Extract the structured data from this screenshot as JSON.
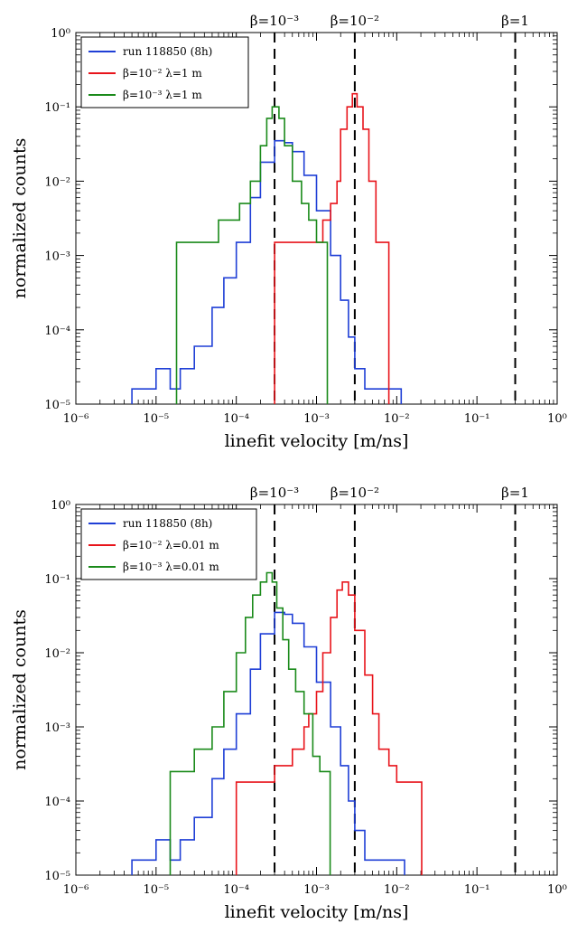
{
  "colors": {
    "run": "#1f3fd6",
    "beta_minus2": "#e8141b",
    "beta_minus3": "#1a8a1a",
    "guides": "#000000",
    "background": "#ffffff"
  },
  "chart_data": [
    {
      "type": "step",
      "xscale": "log",
      "yscale": "log",
      "xlim": [
        1e-06,
        1
      ],
      "ylim": [
        1e-05,
        1
      ],
      "xlabel": "linefit velocity [m/ns]",
      "ylabel": "normalized counts",
      "x_ticks": [
        "10-6",
        "10-5",
        "10-4",
        "10-3",
        "10-2",
        "10-1",
        "100"
      ],
      "y_ticks": [
        "10-5",
        "10-4",
        "10-3",
        "10-2",
        "10-1",
        "100"
      ],
      "legend_position": "top-left",
      "reference_lines": [
        {
          "x": 0.0003,
          "label": "β=10-3"
        },
        {
          "x": 0.003,
          "label": "β=10-2"
        },
        {
          "x": 0.3,
          "label": "β=1"
        }
      ],
      "series": [
        {
          "name": "run 118850 (8h)",
          "color_key": "run",
          "points": [
            [
              5e-06,
              1.6e-05
            ],
            [
              7e-06,
              1.6e-05
            ],
            [
              1e-05,
              3e-05
            ],
            [
              1.5e-05,
              1.6e-05
            ],
            [
              2e-05,
              3e-05
            ],
            [
              3e-05,
              6e-05
            ],
            [
              5e-05,
              0.0002
            ],
            [
              7e-05,
              0.0005
            ],
            [
              0.0001,
              0.0015
            ],
            [
              0.00015,
              0.006
            ],
            [
              0.0002,
              0.018
            ],
            [
              0.0003,
              0.035
            ],
            [
              0.0004,
              0.033
            ],
            [
              0.0005,
              0.025
            ],
            [
              0.0007,
              0.012
            ],
            [
              0.001,
              0.004
            ],
            [
              0.0015,
              0.001
            ],
            [
              0.002,
              0.00025
            ],
            [
              0.0025,
              8e-05
            ],
            [
              0.003,
              3e-05
            ],
            [
              0.004,
              1.6e-05
            ],
            [
              0.005,
              1.6e-05
            ],
            [
              0.007,
              1.6e-05
            ],
            [
              0.01,
              1.6e-05
            ]
          ]
        },
        {
          "name": "β=10-2 λ=1 m",
          "color_key": "beta_minus2",
          "points": [
            [
              0.0003,
              0.0015
            ],
            [
              0.0005,
              0.0015
            ],
            [
              0.0007,
              0.0015
            ],
            [
              0.0009,
              0.0015
            ],
            [
              0.0012,
              0.003
            ],
            [
              0.0015,
              0.005
            ],
            [
              0.0018,
              0.01
            ],
            [
              0.002,
              0.05
            ],
            [
              0.0024,
              0.1
            ],
            [
              0.0028,
              0.15
            ],
            [
              0.0032,
              0.1
            ],
            [
              0.0038,
              0.05
            ],
            [
              0.0045,
              0.01
            ],
            [
              0.0055,
              0.0015
            ],
            [
              0.007,
              0.0015
            ]
          ]
        },
        {
          "name": "β=10-3 λ=1 m",
          "color_key": "beta_minus3",
          "points": [
            [
              1.8e-05,
              0.0015
            ],
            [
              2.5e-05,
              0.0015
            ],
            [
              4e-05,
              0.0015
            ],
            [
              6e-05,
              0.003
            ],
            [
              8e-05,
              0.003
            ],
            [
              0.00011,
              0.005
            ],
            [
              0.00015,
              0.01
            ],
            [
              0.0002,
              0.03
            ],
            [
              0.00024,
              0.07
            ],
            [
              0.00028,
              0.1
            ],
            [
              0.00034,
              0.07
            ],
            [
              0.0004,
              0.03
            ],
            [
              0.0005,
              0.01
            ],
            [
              0.00065,
              0.005
            ],
            [
              0.0008,
              0.003
            ],
            [
              0.001,
              0.0015
            ],
            [
              0.0012,
              0.0015
            ]
          ]
        }
      ]
    },
    {
      "type": "step",
      "xscale": "log",
      "yscale": "log",
      "xlim": [
        1e-06,
        1
      ],
      "ylim": [
        1e-05,
        1
      ],
      "xlabel": "linefit velocity [m/ns]",
      "ylabel": "normalized counts",
      "x_ticks": [
        "10-6",
        "10-5",
        "10-4",
        "10-3",
        "10-2",
        "10-1",
        "100"
      ],
      "y_ticks": [
        "10-5",
        "10-4",
        "10-3",
        "10-2",
        "10-1",
        "100"
      ],
      "legend_position": "top-left",
      "reference_lines": [
        {
          "x": 0.0003,
          "label": "β=10-3"
        },
        {
          "x": 0.003,
          "label": "β=10-2"
        },
        {
          "x": 0.3,
          "label": "β=1"
        }
      ],
      "series": [
        {
          "name": "run 118850 (8h)",
          "color_key": "run",
          "points": [
            [
              5e-06,
              1.6e-05
            ],
            [
              7e-06,
              1.6e-05
            ],
            [
              1e-05,
              3e-05
            ],
            [
              1.5e-05,
              1.6e-05
            ],
            [
              2e-05,
              3e-05
            ],
            [
              3e-05,
              6e-05
            ],
            [
              5e-05,
              0.0002
            ],
            [
              7e-05,
              0.0005
            ],
            [
              0.0001,
              0.0015
            ],
            [
              0.00015,
              0.006
            ],
            [
              0.0002,
              0.018
            ],
            [
              0.0003,
              0.035
            ],
            [
              0.0004,
              0.033
            ],
            [
              0.0005,
              0.025
            ],
            [
              0.0007,
              0.012
            ],
            [
              0.001,
              0.004
            ],
            [
              0.0015,
              0.001
            ],
            [
              0.002,
              0.0003
            ],
            [
              0.0025,
              0.0001
            ],
            [
              0.003,
              4e-05
            ],
            [
              0.004,
              1.6e-05
            ],
            [
              0.006,
              1.6e-05
            ],
            [
              0.008,
              1.6e-05
            ],
            [
              0.011,
              1.6e-05
            ]
          ]
        },
        {
          "name": "β=10-2 λ=0.01 m",
          "color_key": "beta_minus2",
          "points": [
            [
              0.0001,
              0.00018
            ],
            [
              0.00015,
              0.00018
            ],
            [
              0.0002,
              0.00018
            ],
            [
              0.0003,
              0.0003
            ],
            [
              0.0004,
              0.0003
            ],
            [
              0.0005,
              0.0005
            ],
            [
              0.0006,
              0.0005
            ],
            [
              0.0007,
              0.001
            ],
            [
              0.0008,
              0.0015
            ],
            [
              0.001,
              0.003
            ],
            [
              0.0012,
              0.01
            ],
            [
              0.0015,
              0.03
            ],
            [
              0.0018,
              0.07
            ],
            [
              0.0021,
              0.09
            ],
            [
              0.0025,
              0.06
            ],
            [
              0.003,
              0.02
            ],
            [
              0.004,
              0.005
            ],
            [
              0.005,
              0.0015
            ],
            [
              0.006,
              0.0005
            ],
            [
              0.008,
              0.0003
            ],
            [
              0.01,
              0.00018
            ],
            [
              0.013,
              0.00018
            ],
            [
              0.018,
              0.00018
            ]
          ]
        },
        {
          "name": "β=10-3 λ=0.01 m",
          "color_key": "beta_minus3",
          "points": [
            [
              1.5e-05,
              0.00025
            ],
            [
              2e-05,
              0.00025
            ],
            [
              3e-05,
              0.0005
            ],
            [
              5e-05,
              0.001
            ],
            [
              7e-05,
              0.003
            ],
            [
              0.0001,
              0.01
            ],
            [
              0.00013,
              0.03
            ],
            [
              0.00016,
              0.06
            ],
            [
              0.0002,
              0.09
            ],
            [
              0.00024,
              0.12
            ],
            [
              0.00028,
              0.09
            ],
            [
              0.00032,
              0.04
            ],
            [
              0.00038,
              0.015
            ],
            [
              0.00045,
              0.006
            ],
            [
              0.00055,
              0.003
            ],
            [
              0.0007,
              0.0015
            ],
            [
              0.0009,
              0.0004
            ],
            [
              0.0011,
              0.00025
            ],
            [
              0.0013,
              0.00025
            ]
          ]
        }
      ]
    }
  ]
}
